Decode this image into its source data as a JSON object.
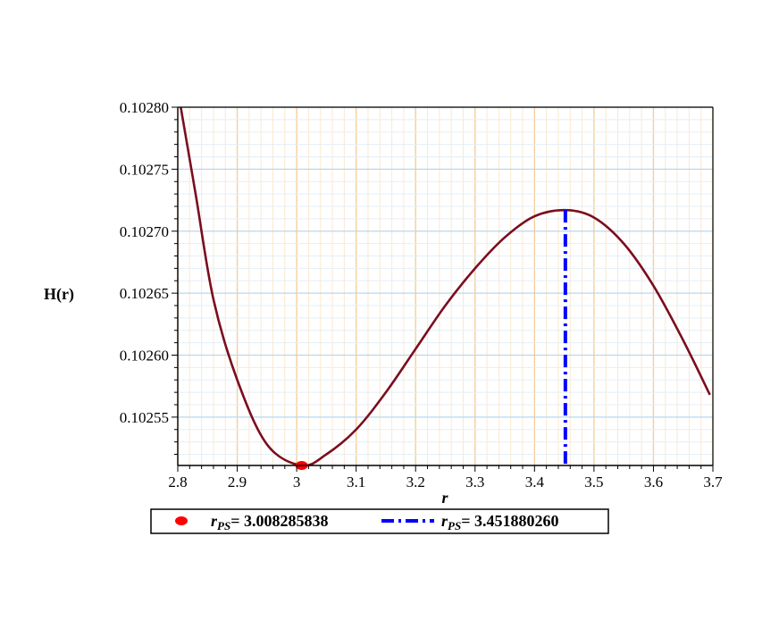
{
  "chart_data": {
    "type": "line",
    "xlabel": "r",
    "ylabel": "H(r)",
    "xlim": [
      2.8,
      3.7
    ],
    "ylim": [
      0.102511,
      0.1028
    ],
    "x_ticks": [
      2.8,
      2.9,
      3,
      3.1,
      3.2,
      3.3,
      3.4,
      3.5,
      3.6,
      3.7
    ],
    "x_tick_labels": [
      "2.8",
      "2.9",
      "3",
      "3.1",
      "3.2",
      "3.3",
      "3.4",
      "3.5",
      "3.6",
      "3.7"
    ],
    "y_ticks": [
      0.10255,
      0.1026,
      0.10265,
      0.1027,
      0.10275,
      0.1028
    ],
    "y_tick_labels": [
      "0.10255",
      "0.10260",
      "0.10265",
      "0.10270",
      "0.10275",
      "0.10280"
    ],
    "grid": true,
    "legend_position": "bottom",
    "series": [
      {
        "type": "line",
        "color": "#7b0d1e",
        "x": [
          2.805,
          2.83,
          2.86,
          2.9,
          2.95,
          3.008,
          3.05,
          3.1,
          3.15,
          3.2,
          3.25,
          3.3,
          3.35,
          3.4,
          3.452,
          3.5,
          3.55,
          3.6,
          3.65,
          3.695
        ],
        "y": [
          0.1028,
          0.10273,
          0.102645,
          0.10258,
          0.102528,
          0.102511,
          0.10252,
          0.10254,
          0.10257,
          0.102605,
          0.10264,
          0.10267,
          0.102695,
          0.102712,
          0.102717,
          0.102711,
          0.10269,
          0.102656,
          0.102612,
          0.102568
        ]
      }
    ],
    "markers": [
      {
        "name": "r_PS min",
        "x": 3.008285838,
        "y": 0.102511,
        "color": "#ff0000"
      }
    ],
    "vlines": [
      {
        "name": "r_PS max",
        "x": 3.45188026,
        "y_top": 0.102717,
        "color": "#0000ff",
        "style": "dash-dot"
      }
    ],
    "legend": [
      {
        "kind": "dot",
        "color": "#ff0000",
        "label_main": "r",
        "label_sub": "PS",
        "label_value": "= 3.008285838"
      },
      {
        "kind": "dashdot",
        "color": "#0000ff",
        "label_main": "r",
        "label_sub": "PS",
        "label_value": "= 3.451880260"
      }
    ]
  }
}
